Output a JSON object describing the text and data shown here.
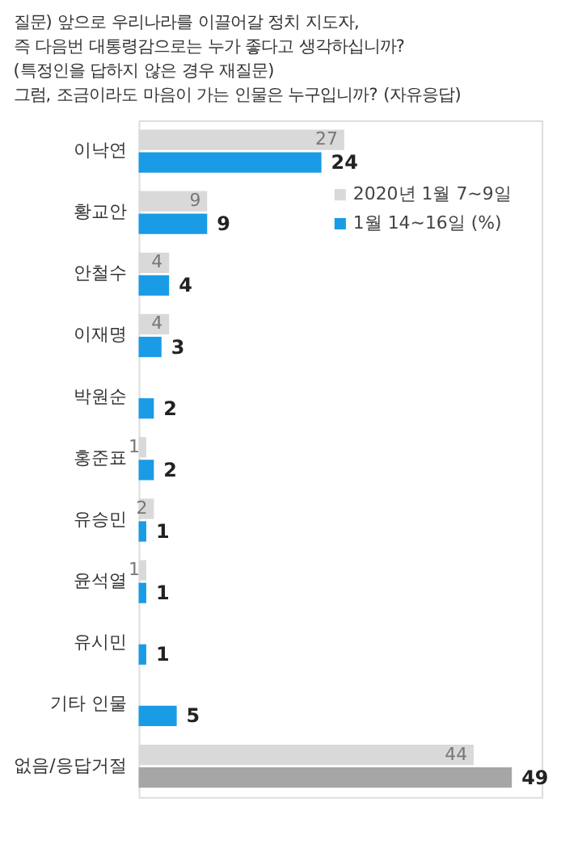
{
  "chart_data": {
    "type": "bar",
    "orientation": "horizontal",
    "title": "질문) 앞으로 우리나라를 이끌어갈 정치 지도자,\n즉 다음번 대통령감으로는 누가 좋다고 생각하십니까?\n(특정인을 답하지 않은 경우 재질문)\n그럼, 조금이라도 마음이 가는 인물은 누구입니까? (자유응답)",
    "categories": [
      "이낙연",
      "황교안",
      "안철수",
      "이재명",
      "박원순",
      "홍준표",
      "유승민",
      "윤석열",
      "유시민",
      "기타 인물",
      "없음/응답거절"
    ],
    "series": [
      {
        "name": "2020년 1월 7~9일",
        "color": "#d9d9d9",
        "values": [
          27,
          9,
          4,
          4,
          null,
          1,
          2,
          1,
          null,
          null,
          44
        ]
      },
      {
        "name": "1월 14~16일 (%)",
        "color": "#1a9be6",
        "colors": [
          "#1a9be6",
          "#1a9be6",
          "#1a9be6",
          "#1a9be6",
          "#1a9be6",
          "#1a9be6",
          "#1a9be6",
          "#1a9be6",
          "#1a9be6",
          "#1a9be6",
          "#a6a6a6"
        ],
        "values": [
          24,
          9,
          4,
          3,
          2,
          2,
          1,
          1,
          1,
          5,
          49
        ]
      }
    ],
    "data_labels": true,
    "legend": "top right",
    "grid": false
  }
}
